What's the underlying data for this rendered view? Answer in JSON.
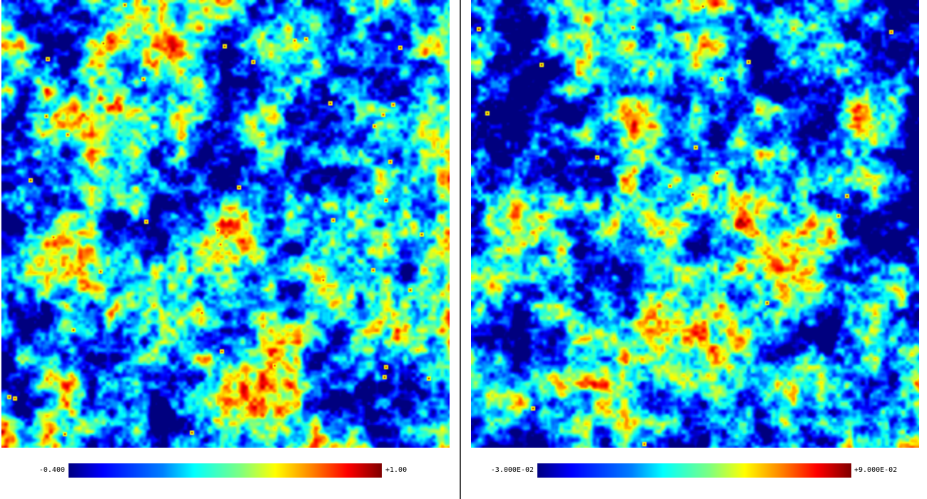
{
  "panels": [
    {
      "colorbar": {
        "min_label": "-0.400",
        "max_label": "+1.00"
      },
      "colormap": [
        "#00007f",
        "#0000ff",
        "#007fff",
        "#00ffff",
        "#7fff7f",
        "#ffff00",
        "#ff7f00",
        "#ff0000",
        "#7f0000"
      ]
    },
    {
      "colorbar": {
        "min_label": "-3.000E-02",
        "max_label": "+9.000E-02"
      },
      "colormap": [
        "#00007f",
        "#0000ff",
        "#007fff",
        "#00ffff",
        "#7fff7f",
        "#ffff00",
        "#ff7f00",
        "#ff0000",
        "#7f0000"
      ]
    }
  ]
}
